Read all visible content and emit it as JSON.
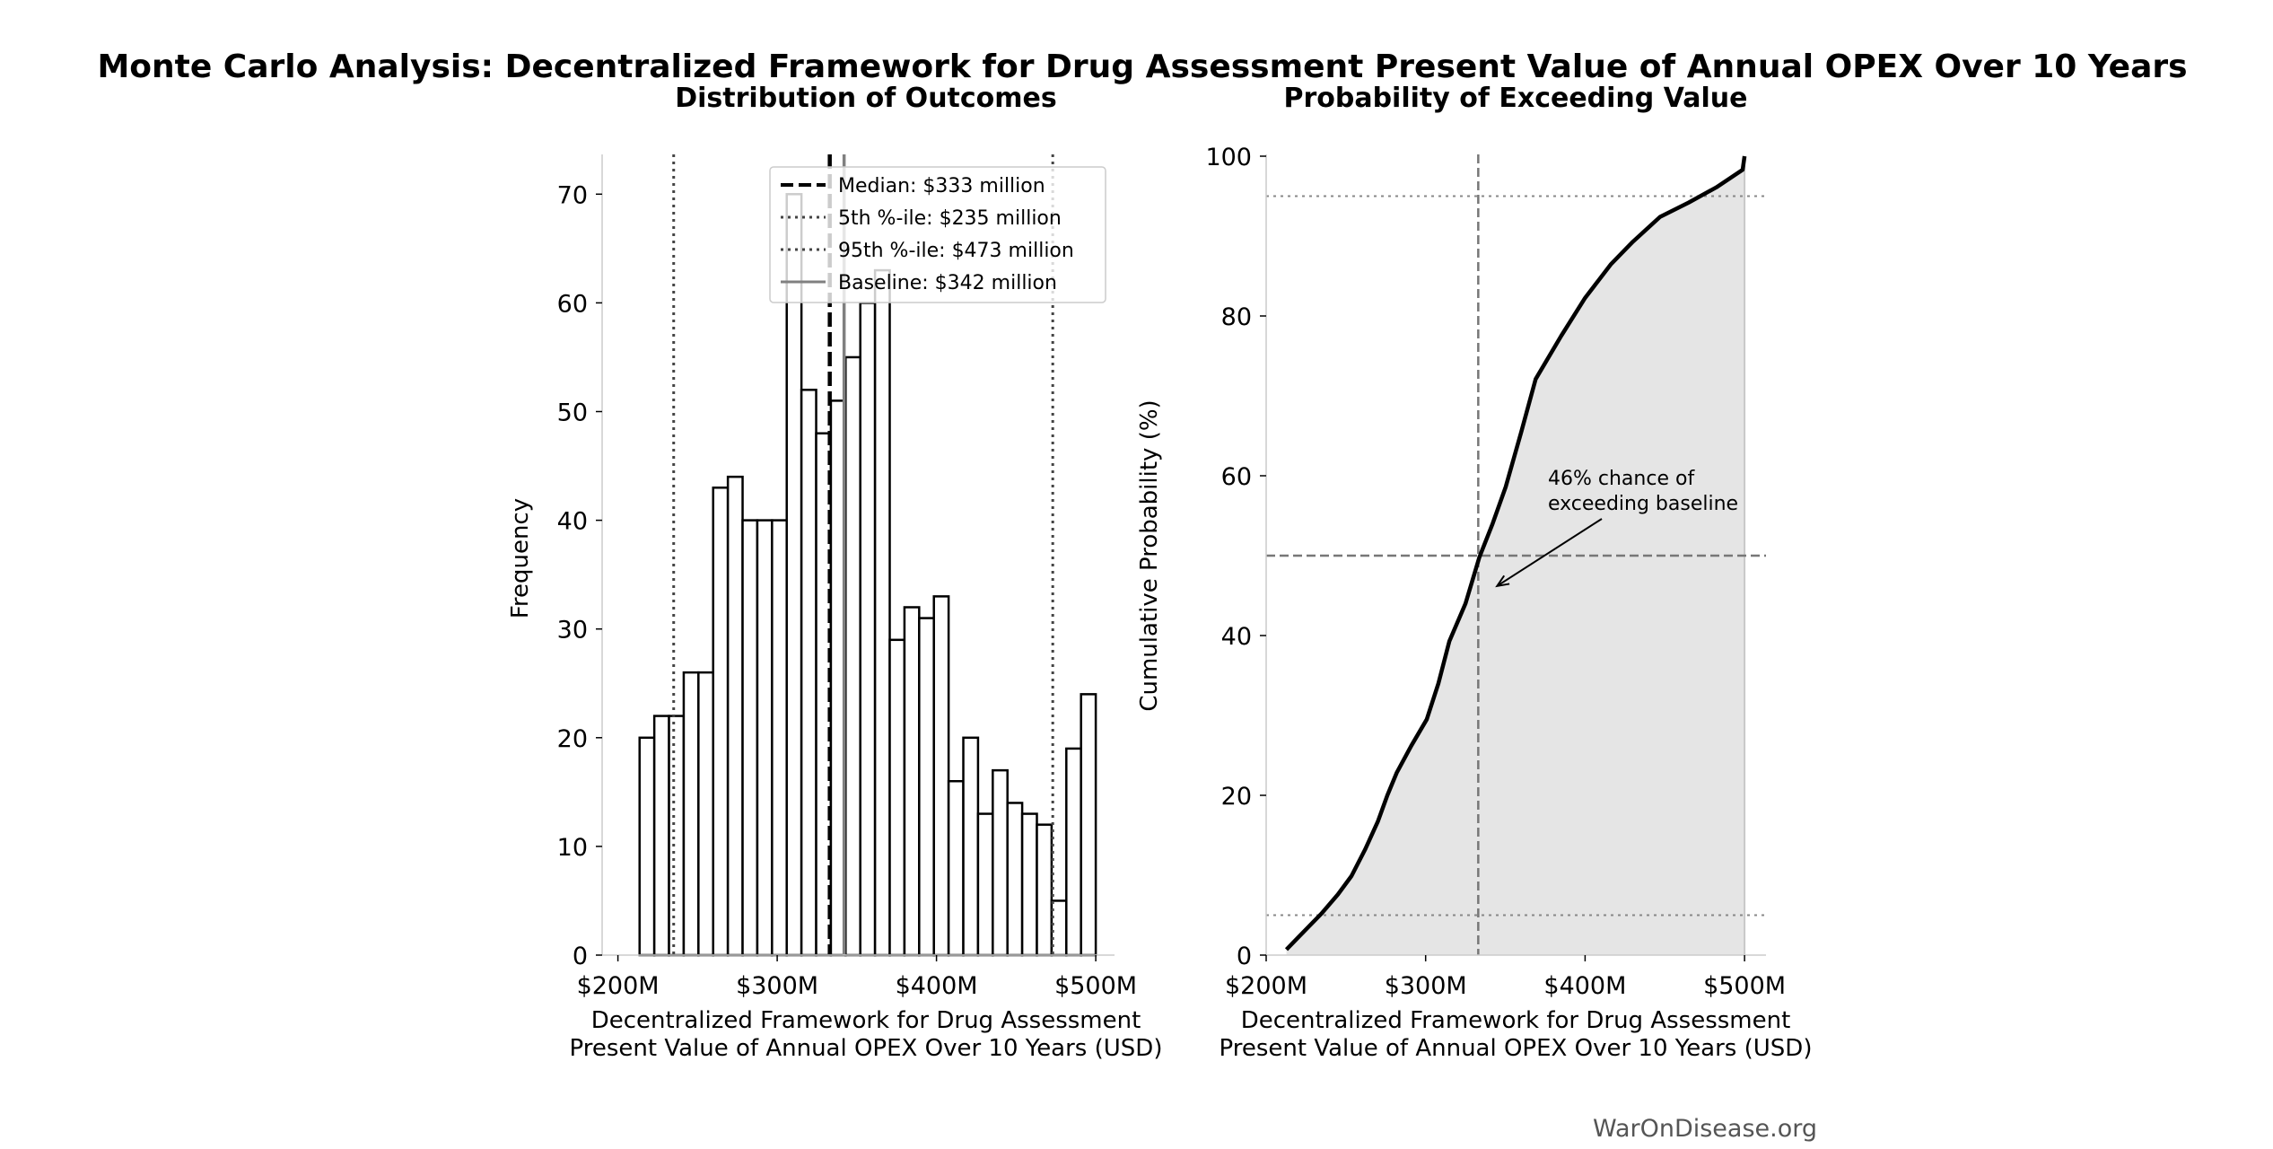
{
  "title": "Monte Carlo Analysis: Decentralized Framework for Drug Assessment Present Value of Annual OPEX Over 10 Years",
  "watermark": "WarOnDisease.org",
  "colors": {
    "bar_fill": "#ffffff",
    "bar_edge": "#000000",
    "median": "#000000",
    "percentile": "#444444",
    "baseline": "#808080",
    "cdf_fill": "#e5e5e5",
    "cdf_line": "#000000",
    "spine": "#cccccc"
  },
  "chart_data": [
    {
      "type": "bar",
      "title": "Distribution of Outcomes",
      "xlabel": "Decentralized Framework for Drug Assessment Present Value of Annual OPEX Over 10 Years (USD)",
      "ylabel": "Frequency",
      "xunit": "million USD",
      "xlim": [
        200,
        510
      ],
      "ylim": [
        0,
        73.5
      ],
      "xticks": [
        200,
        300,
        400,
        500
      ],
      "xtick_labels": [
        "$200M",
        "$300M",
        "$400M",
        "$500M"
      ],
      "yticks": [
        0,
        10,
        20,
        30,
        40,
        50,
        60,
        70
      ],
      "ytick_labels": [
        "0",
        "10",
        "20",
        "30",
        "40",
        "50",
        "60",
        "70"
      ],
      "bin_start": 213.6,
      "bin_end": 500,
      "values": [
        20,
        22,
        22,
        26,
        26,
        43,
        44,
        40,
        40,
        40,
        70,
        52,
        48,
        51,
        55,
        60,
        63,
        29,
        32,
        31,
        33,
        16,
        20,
        13,
        17,
        14,
        13,
        12,
        5,
        19,
        24
      ],
      "reference_lines": [
        {
          "name": "Median: $333 million",
          "x": 333,
          "style": "dashed"
        },
        {
          "name": "5th %-ile: $235 million",
          "x": 235,
          "style": "dotted"
        },
        {
          "name": "95th %-ile: $473 million",
          "x": 473,
          "style": "dotted"
        },
        {
          "name": "Baseline: $342 million",
          "x": 342,
          "style": "solid"
        }
      ],
      "legend_position": "upper-right",
      "grid": false
    },
    {
      "type": "line",
      "title": "Probability of Exceeding Value",
      "xlabel": "Decentralized Framework for Drug Assessment Present Value of Annual OPEX Over 10 Years (USD)",
      "ylabel": "Cumulative Probability (%)",
      "xunit": "million USD",
      "xlim": [
        200,
        512
      ],
      "ylim": [
        0,
        100
      ],
      "xticks": [
        200,
        300,
        400,
        500
      ],
      "xtick_labels": [
        "$200M",
        "$300M",
        "$400M",
        "$500M"
      ],
      "yticks": [
        0,
        20,
        40,
        60,
        80,
        100
      ],
      "ytick_labels": [
        "0",
        "20",
        "40",
        "60",
        "80",
        "100"
      ],
      "x": [
        212.7,
        220,
        234.7,
        245,
        253.5,
        262,
        270,
        276,
        281.8,
        291,
        300.7,
        308,
        314.9,
        325,
        333.7,
        342,
        350.2,
        360,
        369,
        385,
        399.8,
        416.3,
        430,
        447,
        465,
        482.3,
        498.8,
        500
      ],
      "y": [
        0.7,
        2.2,
        5.2,
        7.6,
        9.9,
        13.2,
        16.7,
        20.0,
        22.8,
        26.2,
        29.5,
        34.0,
        39.3,
        44.0,
        49.8,
        54.0,
        58.6,
        65.5,
        72.1,
        77.5,
        82.2,
        86.5,
        89.3,
        92.4,
        94.2,
        96.1,
        98.3,
        100
      ],
      "reference_lines": [
        {
          "x": 333,
          "style": "dashed"
        },
        {
          "y": 50,
          "style": "dashed"
        },
        {
          "y": 5,
          "style": "dotted"
        },
        {
          "y": 95,
          "style": "dotted"
        }
      ],
      "annotation": {
        "text_line1": "46% chance of",
        "text_line2": "exceeding baseline",
        "text_x": 377,
        "text_y": 59,
        "arrow_to_x": 344.8,
        "arrow_to_y": 46.2
      },
      "grid": false
    }
  ]
}
